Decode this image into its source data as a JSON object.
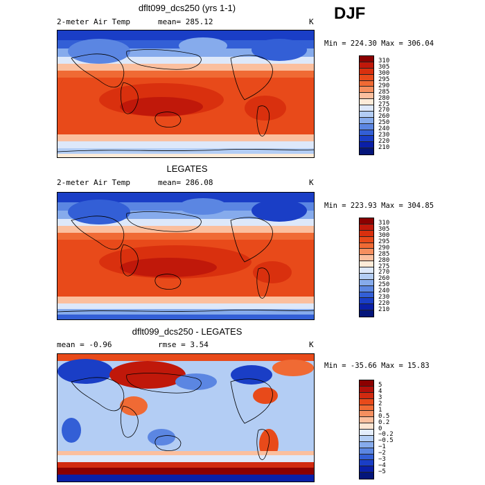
{
  "season": "DJF",
  "panels": [
    {
      "title": "dflt099_dcs250 (yrs 1-1)",
      "left_label": "2-meter Air Temp",
      "mid_label": "mean= 285.12",
      "units": "K",
      "minmax": "Min = 224.30 Max = 306.04",
      "colorbar_labels": [
        "310",
        "305",
        "300",
        "295",
        "290",
        "285",
        "280",
        "275",
        "270",
        "260",
        "250",
        "240",
        "230",
        "220",
        "210"
      ],
      "colorbar_colors": [
        "#8b0000",
        "#c0180a",
        "#d9300e",
        "#e84a1a",
        "#f06a34",
        "#f58f5f",
        "#fbbf9e",
        "#fdebd8",
        "#dde8fa",
        "#b3cdf4",
        "#86abec",
        "#5b86e2",
        "#335fd6",
        "#1a3ec6",
        "#0a1fa8",
        "#04157a"
      ]
    },
    {
      "title": "LEGATES",
      "left_label": "2-meter Air Temp",
      "mid_label": "mean= 286.08",
      "units": "K",
      "minmax": "Min = 223.93 Max = 304.85",
      "colorbar_labels": [
        "310",
        "305",
        "300",
        "295",
        "290",
        "285",
        "280",
        "275",
        "270",
        "260",
        "250",
        "240",
        "230",
        "220",
        "210"
      ],
      "colorbar_colors": [
        "#8b0000",
        "#c0180a",
        "#d9300e",
        "#e84a1a",
        "#f06a34",
        "#f58f5f",
        "#fbbf9e",
        "#fdebd8",
        "#dde8fa",
        "#b3cdf4",
        "#86abec",
        "#5b86e2",
        "#335fd6",
        "#1a3ec6",
        "#0a1fa8",
        "#04157a"
      ]
    },
    {
      "title": "dflt099_dcs250 - LEGATES",
      "left_label": "mean =   -0.96",
      "mid_label": "rmse =    3.54",
      "units": "K",
      "minmax": "Min = -35.66 Max =  15.83",
      "colorbar_labels": [
        "5",
        "4",
        "3",
        "2",
        "1",
        "0.5",
        "0.2",
        "0",
        "−0.2",
        "−0.5",
        "−1",
        "−2",
        "−3",
        "−4",
        "−5"
      ],
      "colorbar_colors": [
        "#8b0000",
        "#b3100a",
        "#d12a10",
        "#e84a1a",
        "#f06a34",
        "#f58f5f",
        "#fbbf9e",
        "#fde5d2",
        "#e4edfb",
        "#b3cdf4",
        "#86abec",
        "#5b86e2",
        "#335fd6",
        "#1a3ec6",
        "#0a1fa8",
        "#04157a"
      ]
    }
  ]
}
